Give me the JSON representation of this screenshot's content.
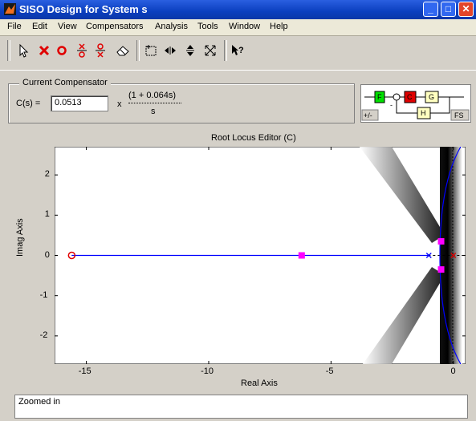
{
  "window": {
    "title": "SISO Design for System s",
    "min_label": "_",
    "max_label": "□",
    "close_label": "✕"
  },
  "menubar": [
    "File",
    "Edit",
    "View",
    "Compensators",
    "Analysis",
    "Tools",
    "Window",
    "Help"
  ],
  "toolbar": {
    "icons": [
      "arrow-pointer-icon",
      "add-pole-icon",
      "add-zero-icon",
      "add-lead-icon",
      "add-lag-icon",
      "eraser-icon",
      "zoom-box-icon",
      "zoom-x-icon",
      "zoom-y-icon",
      "zoom-fit-icon",
      "whats-this-icon"
    ],
    "pole_color": "#e00000",
    "zero_color": "#e00000"
  },
  "compensator": {
    "group_title": "Current Compensator",
    "label": "C(s) =",
    "gain": "0.0513",
    "times": "x",
    "numerator": "(1 + 0.064s)",
    "denominator": "s"
  },
  "block_diagram": {
    "F": "F",
    "C": "C",
    "G": "G",
    "H": "H",
    "sign": "+/-",
    "fs": "FS",
    "minus": "-",
    "F_color": "#00e000",
    "C_color": "#e00000",
    "G_color": "#ffffc0",
    "H_color": "#ffffc0"
  },
  "plot": {
    "title": "Root Locus Editor (C)",
    "xlabel": "Real Axis",
    "ylabel": "Imag Axis",
    "xlim": [
      -16.3,
      0.5
    ],
    "ylim": [
      -2.7,
      2.7
    ],
    "xticks": [
      "-15",
      "-10",
      "-5",
      "0"
    ],
    "yticks": [
      "2",
      "1",
      "0",
      "-1",
      "-2"
    ],
    "locus_color": "#0000ff",
    "marker_color": "#ff00ff",
    "zero_color": "#e00000"
  },
  "status": {
    "text": "Zoomed in"
  }
}
